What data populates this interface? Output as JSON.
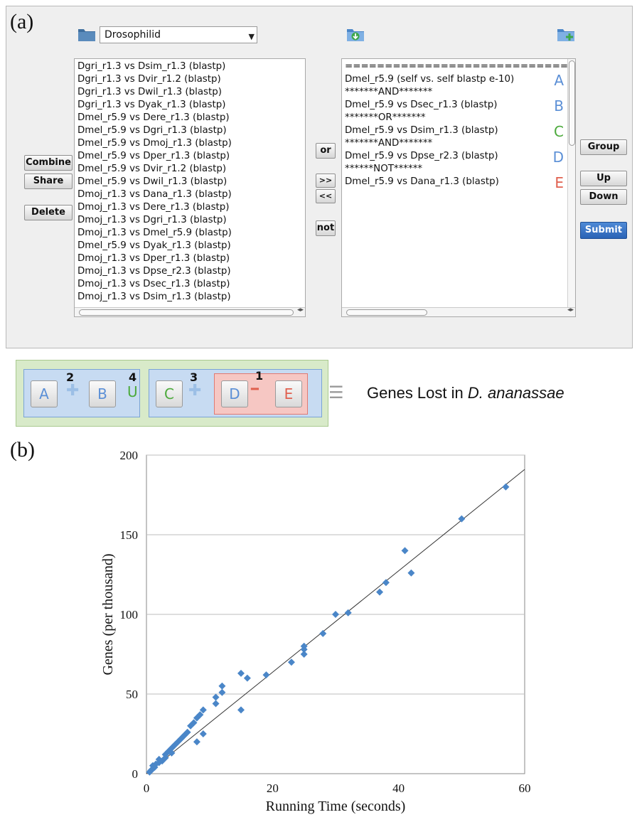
{
  "labels": {
    "a": "(a)",
    "b": "(b)"
  },
  "icons": {
    "folder": "folder-icon",
    "import": "folder-download-icon",
    "new": "folder-add-icon"
  },
  "dropdown": {
    "value": "Drosophilid"
  },
  "left_list": [
    "Dgri_r1.3 vs Dsim_r1.3 (blastp)",
    "Dgri_r1.3 vs Dvir_r1.2 (blastp)",
    "Dgri_r1.3 vs Dwil_r1.3 (blastp)",
    "Dgri_r1.3 vs Dyak_r1.3 (blastp)",
    "Dmel_r5.9 vs Dere_r1.3 (blastp)",
    "Dmel_r5.9 vs Dgri_r1.3 (blastp)",
    "Dmel_r5.9 vs Dmoj_r1.3 (blastp)",
    "Dmel_r5.9 vs Dper_r1.3 (blastp)",
    "Dmel_r5.9 vs Dvir_r1.2 (blastp)",
    "Dmel_r5.9 vs Dwil_r1.3 (blastp)",
    "Dmoj_r1.3 vs Dana_r1.3 (blastp)",
    "Dmoj_r1.3 vs Dere_r1.3 (blastp)",
    "Dmoj_r1.3 vs Dgri_r1.3 (blastp)",
    "Dmoj_r1.3 vs Dmel_r5.9 (blastp)",
    "Dmel_r5.9 vs Dyak_r1.3 (blastp)",
    "Dmoj_r1.3 vs Dper_r1.3 (blastp)",
    "Dmoj_r1.3 vs Dpse_r2.3 (blastp)",
    "Dmoj_r1.3 vs Dsec_r1.3 (blastp)",
    "Dmoj_r1.3 vs Dsim_r1.3 (blastp)"
  ],
  "left_buttons": {
    "combine": "Combine",
    "share": "Share",
    "delete": "Delete"
  },
  "middle_buttons": {
    "or": "or",
    "add": ">>",
    "remove": "<<",
    "not": "not"
  },
  "right_list": [
    {
      "text": "============================",
      "letter": "",
      "color": ""
    },
    {
      "text": "Dmel_r5.9 (self vs. self blastp e-10)",
      "letter": "A",
      "color": "#5b8fd6"
    },
    {
      "text": "*******AND*******",
      "letter": "",
      "color": ""
    },
    {
      "text": "Dmel_r5.9 vs Dsec_r1.3 (blastp)",
      "letter": "B",
      "color": "#5b8fd6"
    },
    {
      "text": "*******OR*******",
      "letter": "",
      "color": ""
    },
    {
      "text": "Dmel_r5.9 vs Dsim_r1.3 (blastp)",
      "letter": "C",
      "color": "#4caa3c"
    },
    {
      "text": "*******AND*******",
      "letter": "",
      "color": ""
    },
    {
      "text": "Dmel_r5.9 vs Dpse_r2.3 (blastp)",
      "letter": "D",
      "color": "#5b8fd6"
    },
    {
      "text": "******NOT******",
      "letter": "",
      "color": ""
    },
    {
      "text": "Dmel_r5.9 vs Dana_r1.3 (blastp)",
      "letter": "E",
      "color": "#e0604f"
    }
  ],
  "right_buttons": {
    "group": "Group",
    "up": "Up",
    "down": "Down",
    "submit": "Submit"
  },
  "formula": {
    "a": "A",
    "b": "B",
    "c": "C",
    "d": "D",
    "e": "E",
    "n1": "1",
    "n2": "2",
    "n3": "3",
    "n4": "4",
    "plus": "✚",
    "union": "U",
    "minus": "━",
    "equals": "☰",
    "result_prefix": "Genes Lost in ",
    "result_species": "D. ananassae"
  },
  "colors": {
    "blue": "#5b8fd6",
    "green": "#4caa3c",
    "red": "#e0604f",
    "submit": "#2a63b6",
    "marker": "#4a86c8"
  },
  "chart_data": {
    "type": "scatter",
    "title": "",
    "xlabel": "Running Time (seconds)",
    "ylabel": "Genes (per thousand)",
    "xlim": [
      0,
      60
    ],
    "ylim": [
      0,
      200
    ],
    "xticks": [
      0,
      20,
      40,
      60
    ],
    "yticks": [
      0,
      50,
      100,
      150,
      200
    ],
    "grid": "horizontal",
    "trendline": {
      "type": "linear",
      "from": [
        0,
        0
      ],
      "to": [
        60,
        191
      ]
    },
    "points": [
      [
        0.5,
        1
      ],
      [
        0.7,
        2
      ],
      [
        1,
        3
      ],
      [
        1,
        5
      ],
      [
        1.3,
        4
      ],
      [
        1.5,
        6
      ],
      [
        2,
        7
      ],
      [
        2,
        9
      ],
      [
        2.5,
        8
      ],
      [
        3,
        10
      ],
      [
        3,
        12
      ],
      [
        3.5,
        14
      ],
      [
        4,
        13
      ],
      [
        4,
        16
      ],
      [
        4.5,
        18
      ],
      [
        5,
        20
      ],
      [
        5.5,
        22
      ],
      [
        6,
        24
      ],
      [
        6.5,
        26
      ],
      [
        7,
        30
      ],
      [
        7.5,
        32
      ],
      [
        8,
        35
      ],
      [
        8,
        20
      ],
      [
        8.5,
        37
      ],
      [
        9,
        40
      ],
      [
        9,
        25
      ],
      [
        11,
        44
      ],
      [
        11,
        48
      ],
      [
        12,
        51
      ],
      [
        12,
        55
      ],
      [
        15,
        63
      ],
      [
        15,
        40
      ],
      [
        16,
        60
      ],
      [
        19,
        62
      ],
      [
        23,
        70
      ],
      [
        25,
        75
      ],
      [
        25,
        78
      ],
      [
        25,
        80
      ],
      [
        28,
        88
      ],
      [
        30,
        100
      ],
      [
        32,
        101
      ],
      [
        37,
        114
      ],
      [
        38,
        120
      ],
      [
        41,
        140
      ],
      [
        42,
        126
      ],
      [
        50,
        160
      ],
      [
        57,
        180
      ]
    ]
  }
}
